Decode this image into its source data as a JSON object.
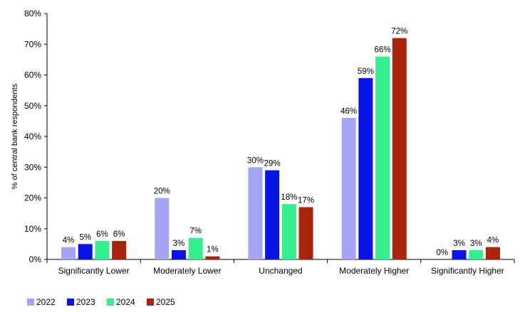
{
  "chart_data": {
    "type": "bar",
    "title": "",
    "xlabel": "",
    "ylabel": "% of central bank respondents",
    "ylim": [
      0,
      80
    ],
    "ytick_step": 10,
    "ytick_suffix": "%",
    "grid": false,
    "legend_position": "bottom-left",
    "categories": [
      "Significantly Lower",
      "Moderately Lower",
      "Unchanged",
      "Moderately Higher",
      "Significantly Higher"
    ],
    "series": [
      {
        "name": "2022",
        "color": "#a5a5f5",
        "values": [
          4,
          20,
          30,
          46,
          0
        ],
        "labels": [
          "4%",
          "20%",
          "30%",
          "46%",
          "0%"
        ]
      },
      {
        "name": "2023",
        "color": "#0a14e6",
        "values": [
          5,
          3,
          29,
          59,
          3
        ],
        "labels": [
          "5%",
          "3%",
          "29%",
          "59%",
          "3%"
        ]
      },
      {
        "name": "2024",
        "color": "#33f08c",
        "values": [
          6,
          7,
          18,
          66,
          3
        ],
        "labels": [
          "6%",
          "7%",
          "18%",
          "66%",
          "3%"
        ]
      },
      {
        "name": "2025",
        "color": "#a8240a",
        "values": [
          6,
          1,
          17,
          72,
          4
        ],
        "labels": [
          "6%",
          "1%",
          "17%",
          "72%",
          "4%"
        ]
      }
    ]
  }
}
